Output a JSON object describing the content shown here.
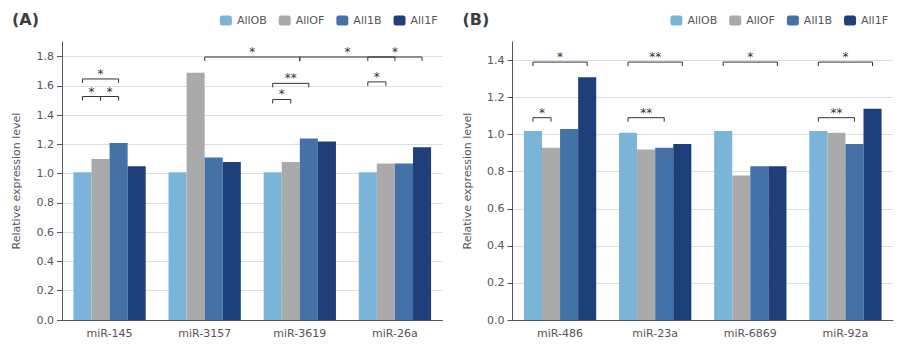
{
  "chart_data": [
    {
      "type": "bar",
      "title": "(A)",
      "categories": [
        "miR-145",
        "miR-3157",
        "miR-3619",
        "miR-26a"
      ],
      "series": [
        {
          "name": "AllOB",
          "color": "#7ab4d8",
          "values": [
            1.01,
            1.01,
            1.01,
            1.01
          ]
        },
        {
          "name": "AllOF",
          "color": "#aaaaaa",
          "values": [
            1.1,
            1.69,
            1.08,
            1.07
          ]
        },
        {
          "name": "All1B",
          "color": "#4472a8",
          "values": [
            1.21,
            1.11,
            1.24,
            1.07
          ]
        },
        {
          "name": "All1F",
          "color": "#1f3f7a",
          "values": [
            1.05,
            1.08,
            1.22,
            1.18
          ]
        }
      ],
      "ylim": [
        0,
        1.9
      ],
      "yticks": [
        {
          "value": 0,
          "label": "0.0"
        },
        0.2,
        0.4,
        0.6,
        0.8,
        {
          "value": 1.0,
          "label": "1.0"
        },
        1.2,
        1.4,
        1.6,
        1.8
      ],
      "ylabel": "Relative expression level",
      "grid": true,
      "legend": "upper right",
      "annotations": [
        {
          "text": "*",
          "y": 1.5,
          "from": {
            "category": "miR-145",
            "series": "AllOB"
          },
          "to": {
            "category": "miR-145",
            "series": "AllOF"
          }
        },
        {
          "text": "*",
          "y": 1.5,
          "from": {
            "category": "miR-145",
            "series": "AllOF"
          },
          "to": {
            "category": "miR-145",
            "series": "All1B"
          }
        },
        {
          "text": "*",
          "y": 1.62,
          "from": {
            "category": "miR-145",
            "series": "AllOB"
          },
          "to": {
            "category": "miR-145",
            "series": "All1B"
          }
        },
        {
          "text": "*",
          "y": 1.77,
          "from": {
            "category": "miR-3157"
          },
          "to": {
            "category": "miR-3619"
          }
        },
        {
          "text": "*",
          "y": 1.77,
          "from": {
            "category": "miR-3619"
          },
          "to": {
            "category": "miR-26a"
          }
        },
        {
          "text": "*",
          "y": 1.48,
          "from": {
            "category": "miR-3619",
            "series": "AllOB"
          },
          "to": {
            "category": "miR-3619",
            "series": "AllOF"
          }
        },
        {
          "text": "**",
          "y": 1.59,
          "from": {
            "category": "miR-3619",
            "series": "AllOB"
          },
          "to": {
            "category": "miR-3619",
            "series": "All1B"
          }
        },
        {
          "text": "*",
          "y": 1.6,
          "from": {
            "category": "miR-26a",
            "series": "AllOB"
          },
          "to": {
            "category": "miR-26a",
            "series": "AllOF"
          }
        },
        {
          "text": "*",
          "y": 1.77,
          "from": {
            "category": "miR-26a",
            "series": "AllOB"
          },
          "to": {
            "category": "miR-26a",
            "series": "All1F"
          }
        }
      ]
    },
    {
      "type": "bar",
      "title": "(B)",
      "categories": [
        "miR-486",
        "miR-23a",
        "miR-6869",
        "miR-92a"
      ],
      "series": [
        {
          "name": "AllOB",
          "color": "#7ab4d8",
          "values": [
            1.02,
            1.01,
            1.02,
            1.02
          ]
        },
        {
          "name": "AllOF",
          "color": "#aaaaaa",
          "values": [
            0.93,
            0.92,
            0.78,
            1.01
          ]
        },
        {
          "name": "All1B",
          "color": "#4472a8",
          "values": [
            1.03,
            0.93,
            0.83,
            0.95
          ]
        },
        {
          "name": "All1F",
          "color": "#1f3f7a",
          "values": [
            1.31,
            0.95,
            0.83,
            1.14
          ]
        }
      ],
      "ylim": [
        0,
        1.5
      ],
      "yticks": [
        {
          "value": 0,
          "label": "0.0"
        },
        0.2,
        0.4,
        0.6,
        0.8,
        {
          "value": 1.0,
          "label": "1.0"
        },
        1.2,
        1.4
      ],
      "ylabel": "Relative expression level",
      "grid": true,
      "legend": "upper right",
      "annotations": [
        {
          "text": "*",
          "y": 1.07,
          "from": {
            "category": "miR-486",
            "series": "AllOB"
          },
          "to": {
            "category": "miR-486",
            "series": "AllOF"
          }
        },
        {
          "text": "*",
          "y": 1.37,
          "from": {
            "category": "miR-486",
            "series": "AllOB"
          },
          "to": {
            "category": "miR-486",
            "series": "All1F"
          }
        },
        {
          "text": "**",
          "y": 1.07,
          "from": {
            "category": "miR-23a",
            "series": "AllOB"
          },
          "to": {
            "category": "miR-23a",
            "series": "All1B"
          }
        },
        {
          "text": "**",
          "y": 1.37,
          "from": {
            "category": "miR-23a",
            "series": "AllOB"
          },
          "to": {
            "category": "miR-23a",
            "series": "All1F"
          }
        },
        {
          "text": "*",
          "y": 1.37,
          "from": {
            "category": "miR-6869",
            "series": "AllOB"
          },
          "to": {
            "category": "miR-6869",
            "series": "All1F"
          }
        },
        {
          "text": "**",
          "y": 1.07,
          "from": {
            "category": "miR-92a",
            "series": "AllOB"
          },
          "to": {
            "category": "miR-92a",
            "series": "All1B"
          }
        },
        {
          "text": "*",
          "y": 1.37,
          "from": {
            "category": "miR-92a",
            "series": "AllOB"
          },
          "to": {
            "category": "miR-92a",
            "series": "All1F"
          }
        }
      ]
    }
  ]
}
